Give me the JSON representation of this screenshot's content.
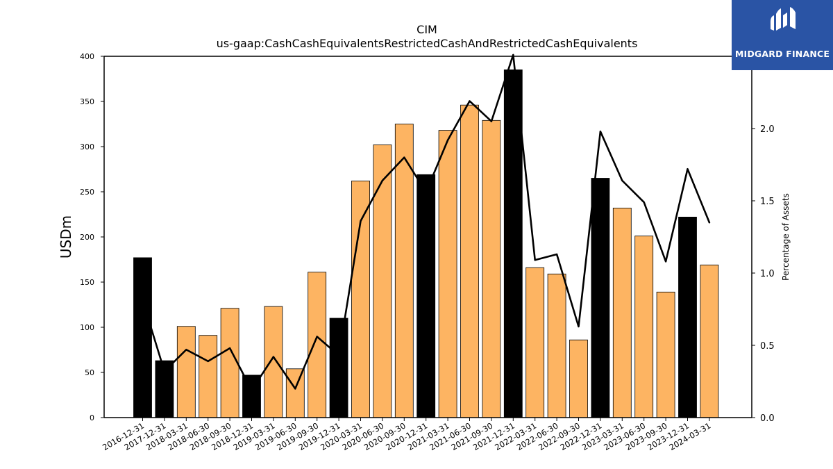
{
  "chart_data": {
    "type": "bar",
    "title": "CIM",
    "subtitle": "us-gaap:CashCashEquivalentsRestrictedCashAndRestrictedCashEquivalents",
    "ylabel": "USDm",
    "y2label": "Percentage of Assets",
    "ylim": [
      0,
      400
    ],
    "y2lim": [
      0,
      2.5
    ],
    "yticks": [
      0,
      50,
      100,
      150,
      200,
      250,
      300,
      350,
      400
    ],
    "y2ticks": [
      "0.0",
      "0.5",
      "1.0",
      "1.5",
      "2.0",
      "2.5"
    ],
    "categories": [
      "2016-12-31",
      "2017-12-31",
      "2018-03-31",
      "2018-06-30",
      "2018-09-30",
      "2018-12-31",
      "2019-03-31",
      "2019-06-30",
      "2019-09-30",
      "2019-12-31",
      "2020-03-31",
      "2020-06-30",
      "2020-09-30",
      "2020-12-31",
      "2021-03-31",
      "2021-06-30",
      "2021-09-30",
      "2021-12-31",
      "2022-03-31",
      "2022-06-30",
      "2022-09-30",
      "2022-12-31",
      "2023-03-31",
      "2023-06-30",
      "2023-09-30",
      "2023-12-31",
      "2024-03-31"
    ],
    "series": [
      {
        "type": "bar",
        "values": [
          177,
          63,
          101,
          91,
          121,
          47,
          123,
          54,
          161,
          110,
          262,
          302,
          325,
          269,
          318,
          346,
          329,
          385,
          166,
          159,
          86,
          265,
          232,
          201,
          139,
          222,
          169
        ],
        "year_end": [
          true,
          true,
          false,
          false,
          false,
          true,
          false,
          false,
          false,
          true,
          false,
          false,
          false,
          true,
          false,
          false,
          false,
          true,
          false,
          false,
          false,
          true,
          false,
          false,
          false,
          true,
          false
        ]
      },
      {
        "type": "line",
        "axis": "right",
        "values": [
          0.81,
          0.32,
          0.47,
          0.39,
          0.48,
          0.19,
          0.42,
          0.2,
          0.56,
          0.43,
          1.36,
          1.64,
          1.8,
          1.56,
          1.92,
          2.19,
          2.05,
          2.51,
          1.09,
          1.13,
          0.63,
          1.98,
          1.64,
          1.49,
          1.08,
          1.72,
          1.35
        ]
      }
    ],
    "colors": {
      "year_end_bar": "#000000",
      "quarter_bar": "#fdb462",
      "line": "#000000"
    }
  },
  "logo": {
    "text": "MIDGARD FINANCE",
    "background": "#2a54a5"
  }
}
